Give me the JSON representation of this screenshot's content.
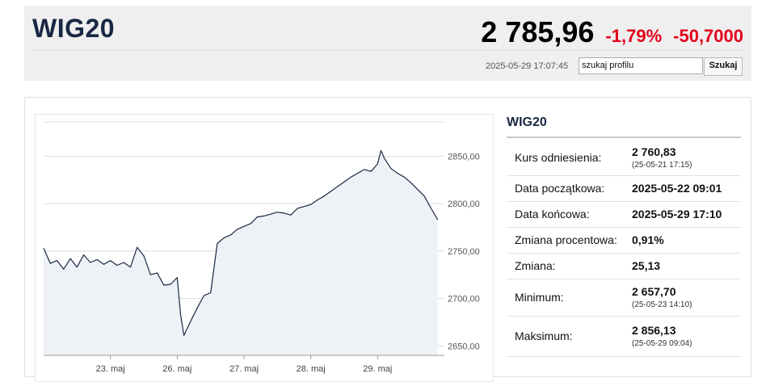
{
  "header": {
    "title": "WIG20",
    "price": "2 785,96",
    "change_pct": "-1,79%",
    "change_abs": "-50,7000",
    "timestamp": "2025-05-29 17:07:45",
    "search_value": "szukaj profilu",
    "search_button": "Szukaj"
  },
  "colors": {
    "brand": "#1a2744",
    "negative": "#e3001b",
    "line": "#1a2744",
    "area": "#eef1f6"
  },
  "info": {
    "title": "WIG20",
    "rows": [
      {
        "label": "Kurs odniesienia:",
        "value": "2 760,83",
        "sub": "(25-05-21 17:15)"
      },
      {
        "label": "Data początkowa:",
        "value": "2025-05-22 09:01",
        "sub": ""
      },
      {
        "label": "Data końcowa:",
        "value": "2025-05-29 17:10",
        "sub": ""
      },
      {
        "label": "Zmiana procentowa:",
        "value": "0,91%",
        "sub": ""
      },
      {
        "label": "Zmiana:",
        "value": "25,13",
        "sub": ""
      },
      {
        "label": "Minimum:",
        "value": "2 657,70",
        "sub": "(25-05-23 14:10)"
      },
      {
        "label": "Maksimum:",
        "value": "2 856,13",
        "sub": "(25-05-29 09:04)"
      }
    ]
  },
  "chart_data": {
    "type": "area",
    "title": "",
    "xlabel": "",
    "ylabel": "",
    "ylim": [
      2640,
      2870
    ],
    "xlim": [
      0,
      6
    ],
    "grid": true,
    "y_ticks": [
      "2850,00",
      "2800,00",
      "2750,00",
      "2700,00",
      "2650,00"
    ],
    "y_tick_values": [
      2850,
      2800,
      2750,
      2700,
      2650
    ],
    "x_ticks": [
      "23. maj",
      "26. maj",
      "27. maj",
      "28. maj",
      "29. maj"
    ],
    "x_tick_values": [
      1,
      2,
      3,
      4,
      5
    ],
    "x": [
      0,
      0.1,
      0.2,
      0.3,
      0.4,
      0.5,
      0.6,
      0.7,
      0.8,
      0.9,
      1.0,
      1.1,
      1.2,
      1.3,
      1.4,
      1.5,
      1.6,
      1.7,
      1.8,
      1.9,
      2.0,
      2.05,
      2.1,
      2.2,
      2.3,
      2.4,
      2.5,
      2.6,
      2.7,
      2.8,
      2.9,
      3.0,
      3.1,
      3.2,
      3.3,
      3.4,
      3.5,
      3.6,
      3.7,
      3.8,
      3.9,
      4.0,
      4.1,
      4.2,
      4.3,
      4.4,
      4.5,
      4.6,
      4.7,
      4.8,
      4.9,
      5.0,
      5.05,
      5.1,
      5.2,
      5.3,
      5.4,
      5.5,
      5.6,
      5.7,
      5.8,
      5.9
    ],
    "y": [
      2753,
      2737,
      2740,
      2731,
      2742,
      2733,
      2746,
      2738,
      2741,
      2736,
      2740,
      2735,
      2738,
      2733,
      2754,
      2745,
      2725,
      2727,
      2714,
      2715,
      2722,
      2683,
      2661,
      2676,
      2690,
      2703,
      2706,
      2758,
      2764,
      2767,
      2773,
      2776,
      2779,
      2786,
      2787,
      2789,
      2791,
      2790,
      2788,
      2795,
      2797,
      2799,
      2804,
      2808,
      2813,
      2818,
      2823,
      2828,
      2832,
      2836,
      2834,
      2842,
      2856,
      2848,
      2837,
      2832,
      2828,
      2822,
      2815,
      2808,
      2795,
      2783
    ]
  }
}
